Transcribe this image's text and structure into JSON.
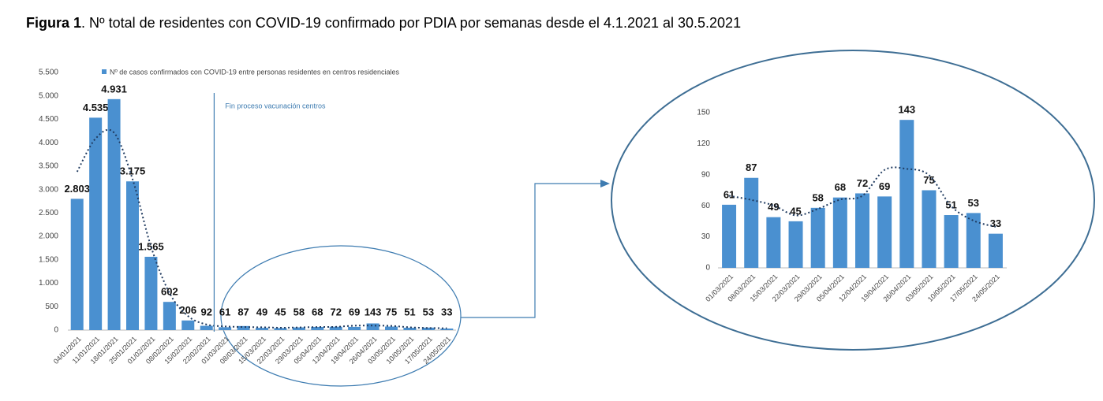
{
  "title": {
    "bold": "Figura 1",
    "text": ". Nº total de residentes con COVID-19 confirmado por PDIA por semanas desde el 4.1.2021 al 30.5.2021"
  },
  "chart_data": [
    {
      "type": "bar",
      "annotation": "Fin proceso vacunación centros",
      "categories": [
        "04/01/2021",
        "11/01/2021",
        "18/01/2021",
        "25/01/2021",
        "01/02/2021",
        "08/02/2021",
        "15/02/2021",
        "22/02/2021",
        "01/03/2021",
        "08/03/2021",
        "15/03/2021",
        "22/03/2021",
        "29/03/2021",
        "05/04/2021",
        "12/04/2021",
        "19/04/2021",
        "26/04/2021",
        "03/05/2021",
        "10/05/2021",
        "17/05/2021",
        "24/05/2021"
      ],
      "series": [
        {
          "name": "Nº de casos confirmados con COVID-19 entre personas residentes en centros residenciales",
          "color": "#4a90d0",
          "values": [
            2803,
            4535,
            4931,
            3175,
            1565,
            602,
            206,
            92,
            61,
            87,
            49,
            45,
            58,
            68,
            72,
            69,
            143,
            75,
            51,
            53,
            33
          ],
          "value_labels": [
            "2.803",
            "4.535",
            "4.931",
            "3.175",
            "1.565",
            "602",
            "206",
            "92",
            "61",
            "87",
            "49",
            "45",
            "58",
            "68",
            "72",
            "69",
            "143",
            "75",
            "51",
            "53",
            "33"
          ]
        }
      ],
      "ylim": [
        0,
        5500
      ],
      "yticks": [
        0,
        500,
        {
          "value": 1000,
          "label": "1.000"
        },
        {
          "value": 1500,
          "label": "1.500"
        },
        {
          "value": 2000,
          "label": "2.000"
        },
        {
          "value": 2500,
          "label": "2.500"
        },
        {
          "value": 3000,
          "label": "3.000"
        },
        {
          "value": 3500,
          "label": "3.500"
        },
        {
          "value": 4000,
          "label": "4.000"
        },
        {
          "value": 4500,
          "label": "4.500"
        },
        {
          "value": 5000,
          "label": "5.000"
        },
        {
          "value": 5500,
          "label": "5.500"
        }
      ],
      "legend": "top",
      "grid": false,
      "trendline": true
    },
    {
      "type": "bar",
      "categories": [
        "01/03/2021",
        "08/03/2021",
        "15/03/2021",
        "22/03/2021",
        "29/03/2021",
        "05/04/2021",
        "12/04/2021",
        "19/04/2021",
        "26/04/2021",
        "03/05/2021",
        "10/05/2021",
        "17/05/2021",
        "24/05/2021"
      ],
      "series": [
        {
          "color": "#4a90d0",
          "values": [
            61,
            87,
            49,
            45,
            58,
            68,
            72,
            69,
            143,
            75,
            51,
            53,
            33
          ]
        }
      ],
      "ylim": [
        0,
        150
      ],
      "yticks": [
        0,
        30,
        60,
        90,
        120,
        150
      ],
      "grid": false,
      "trendline": true
    }
  ]
}
